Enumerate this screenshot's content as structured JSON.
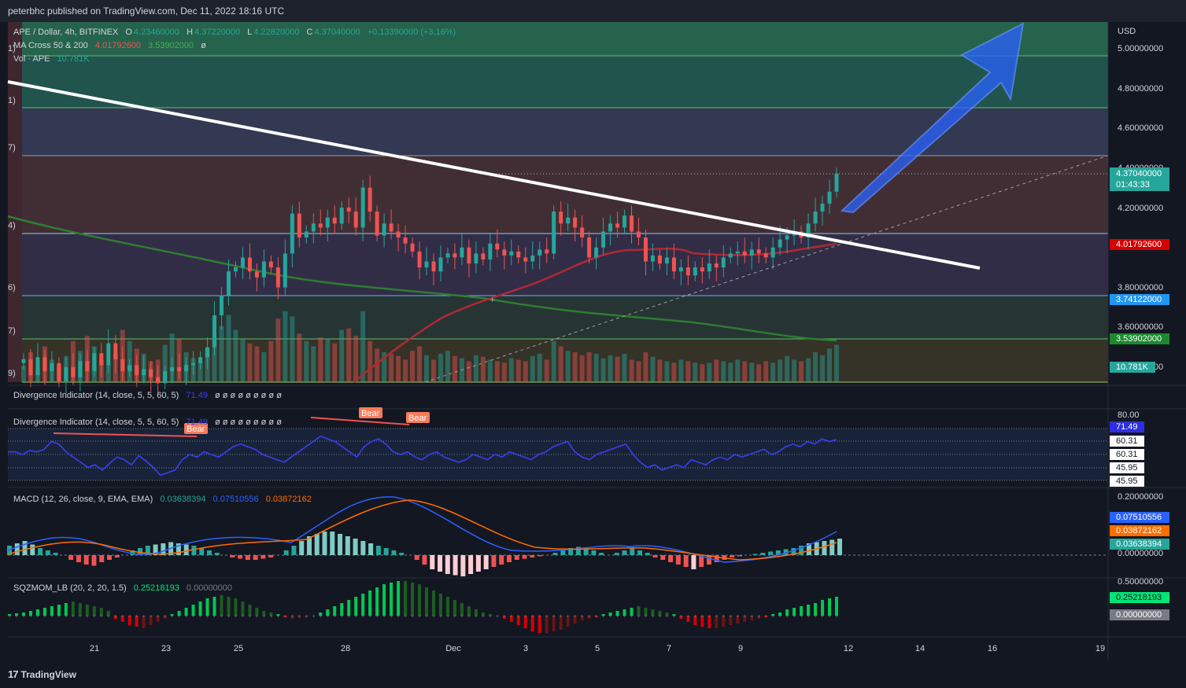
{
  "header": {
    "published": "peterbhc published on TradingView.com, Dec 11, 2022 18:16 UTC"
  },
  "footer": {
    "brand": "TradingView"
  },
  "main_legend": {
    "symbol": "APE / Dollar, 4h, BITFINEX",
    "o_label": "O",
    "o": "4.23460000",
    "h_label": "H",
    "h": "4.37220000",
    "l_label": "L",
    "l": "4.22820000",
    "c_label": "C",
    "c": "4.37040000",
    "change": "+0.13390000 (+3.16%)",
    "ma_label": "MA Cross 50 & 200",
    "ma50": "4.01792600",
    "ma200": "3.53902000",
    "ma_extra": "ø",
    "vol_label": "Vol · APE",
    "vol": "10.781K"
  },
  "colors": {
    "up": "#26a69a",
    "down": "#ef5350",
    "ma50": "#b22833",
    "ma200": "#2e7d32",
    "trend": "#ffffff",
    "arrow": "#2962ff",
    "rsi": "#3a3ff0",
    "macd": "#2962ff",
    "signal": "#ff6d00"
  },
  "price_axis": {
    "currency": "USD",
    "ticks": [
      "5.00000000",
      "4.80000000",
      "4.60000000",
      "4.40000000",
      "4.20000000",
      "3.80000000",
      "3.60000000",
      "3.40000000"
    ],
    "tags": [
      {
        "value": "4.37040000",
        "sub": "01:43:33",
        "color": "#26a69a"
      },
      {
        "value": "4.01792600",
        "color": "#d50000"
      },
      {
        "value": "3.74122000",
        "color": "#2196f3"
      },
      {
        "value": "3.53902000",
        "color": "#1b8a2e"
      },
      {
        "value": "10.781K",
        "color": "#26a69a"
      }
    ]
  },
  "fib_labels": [
    "1)",
    "1)",
    "7)",
    "4)",
    "6)",
    "7)",
    "9)"
  ],
  "divergence": {
    "legend1": "Divergence Indicator (14, close, 5, 5, 60, 5)",
    "value": "71.49",
    "nulls": "ø ø ø ø ø ø ø ø ø",
    "axis": [
      "80.00"
    ],
    "tags": [
      "71.49",
      "60.31",
      "60.31",
      "45.95",
      "45.95"
    ],
    "bear": "Bear"
  },
  "macd": {
    "legend": "MACD (12, 26, close, 9, EMA, EMA)",
    "hist": "0.03638394",
    "macd": "0.07510556",
    "signal": "0.03872162",
    "axis": [
      "0.20000000",
      "0.00000000"
    ],
    "tags": [
      {
        "v": "0.07510556",
        "c": "#2962ff"
      },
      {
        "v": "0.03872162",
        "c": "#ff6d00"
      },
      {
        "v": "0.03638394",
        "c": "#26a69a"
      }
    ]
  },
  "sqz": {
    "legend": "SQZMOM_LB (20, 2, 20, 1.5)",
    "val": "0.25218193",
    "zero": "0.00000000",
    "axis": [
      "0.50000000"
    ],
    "tags": [
      {
        "v": "0.25218193",
        "c": "#00e676"
      },
      {
        "v": "0.00000000",
        "c": "#787b86"
      }
    ]
  },
  "time_axis": [
    "21",
    "23",
    "25",
    "28",
    "Dec",
    "3",
    "5",
    "7",
    "9",
    "12",
    "14",
    "16",
    "19"
  ],
  "chart_data": {
    "type": "candlestick",
    "title": "APE / Dollar, 4h, BITFINEX",
    "ylabel": "USD",
    "ylim": [
      3.4,
      5.05
    ],
    "horizontal_levels": [
      4.94,
      4.7,
      4.46,
      4.018,
      3.741,
      3.539
    ],
    "last": 4.3704,
    "ma50_last": 4.017926,
    "ma200_last": 3.53902,
    "close_path": [
      3.44,
      3.36,
      3.45,
      3.38,
      3.42,
      3.33,
      3.4,
      3.35,
      3.43,
      3.38,
      3.47,
      3.41,
      3.52,
      3.44,
      3.38,
      3.41,
      3.36,
      3.39,
      3.35,
      3.32,
      3.38,
      3.4,
      3.38,
      3.41,
      3.42,
      3.45,
      3.5,
      3.66,
      3.76,
      3.88,
      3.9,
      3.95,
      3.88,
      3.85,
      3.93,
      3.9,
      3.8,
      3.97,
      4.17,
      4.05,
      4.08,
      4.12,
      4.1,
      4.15,
      4.12,
      4.2,
      4.18,
      4.1,
      4.3,
      4.18,
      4.06,
      4.12,
      4.08,
      4.05,
      4.02,
      3.98,
      3.9,
      3.93,
      3.88,
      3.95,
      3.97,
      3.95,
      4.0,
      3.92,
      3.97,
      3.94,
      4.02,
      3.99,
      3.96,
      3.98,
      3.95,
      3.93,
      3.96,
      3.99,
      3.97,
      4.18,
      4.12,
      4.15,
      4.1,
      4.05,
      3.95,
      4.0,
      4.08,
      4.12,
      4.1,
      4.16,
      4.08,
      4.05,
      3.93,
      3.96,
      3.92,
      3.95,
      3.88,
      3.9,
      3.86,
      3.9,
      3.88,
      3.92,
      3.9,
      3.95,
      3.97,
      3.98,
      3.96,
      3.99,
      3.97,
      3.95,
      4.0,
      4.04,
      4.06,
      4.08,
      4.05,
      4.12,
      4.18,
      4.22,
      4.28,
      4.37
    ],
    "annotation": "Blue arrow pointing up-right toward 5.0; descending white trendline broken upward"
  }
}
